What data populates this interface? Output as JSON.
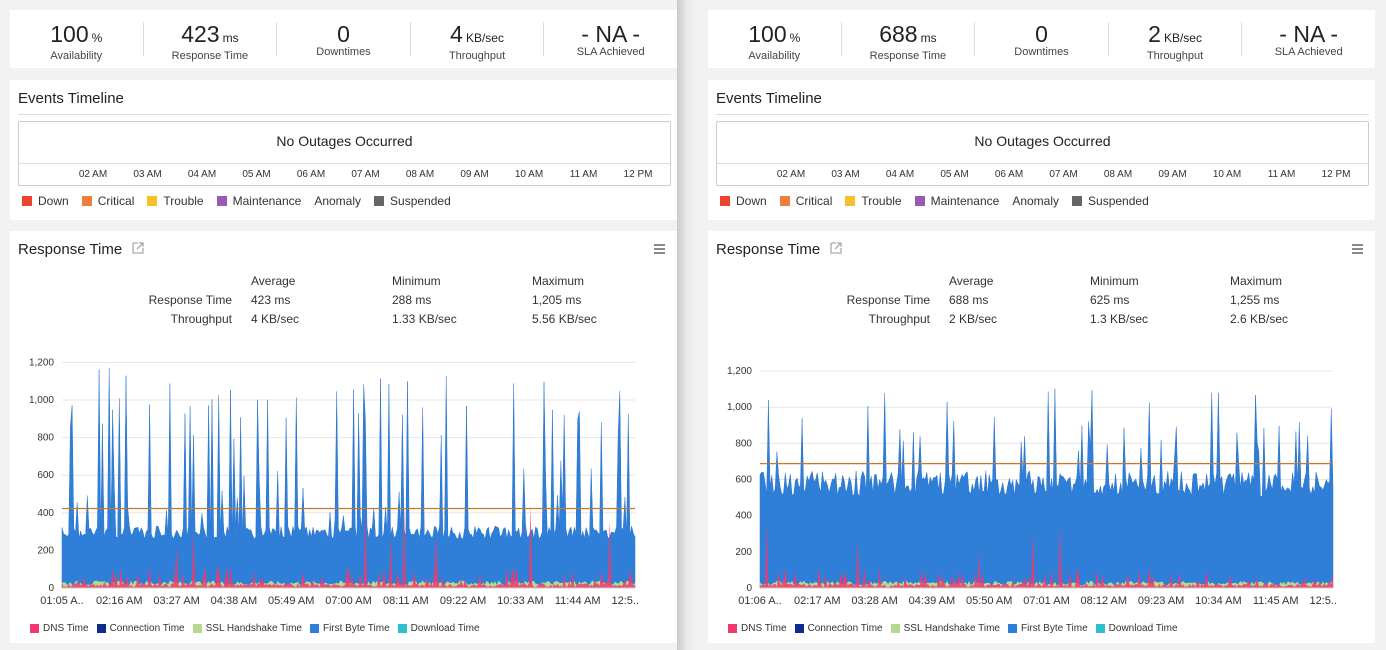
{
  "timeline_ticks": [
    "02 AM",
    "03 AM",
    "04 AM",
    "05 AM",
    "06 AM",
    "07 AM",
    "08 AM",
    "09 AM",
    "10 AM",
    "11 AM",
    "12 PM"
  ],
  "event_legend": [
    {
      "label": "Down",
      "color": "#e8452c"
    },
    {
      "label": "Critical",
      "color": "#f07d3c"
    },
    {
      "label": "Trouble",
      "color": "#f5c02a"
    },
    {
      "label": "Maintenance",
      "color": "#9b59b6"
    },
    {
      "label": "Anomaly",
      "color": ""
    },
    {
      "label": "Suspended",
      "color": "#666666"
    }
  ],
  "chart_legend": [
    {
      "label": "DNS Time",
      "color": "#f2386e"
    },
    {
      "label": "Connection Time",
      "color": "#0d2b8a"
    },
    {
      "label": "SSL Handshake Time",
      "color": "#b5d98e"
    },
    {
      "label": "First Byte Time",
      "color": "#2f7fd8"
    },
    {
      "label": "Download Time",
      "color": "#2ebfcf"
    }
  ],
  "labels": {
    "events_title": "Events Timeline",
    "no_outages": "No Outages Occurred",
    "response_title": "Response Time",
    "col_average": "Average",
    "col_minimum": "Minimum",
    "col_maximum": "Maximum",
    "row_response": "Response Time",
    "row_throughput": "Throughput"
  },
  "panels": [
    {
      "stats": [
        {
          "value": "100",
          "unit": "%",
          "label": "Availability"
        },
        {
          "value": "423",
          "unit": "ms",
          "label": "Response Time"
        },
        {
          "value": "0",
          "unit": "",
          "label": "Downtimes"
        },
        {
          "value": "4",
          "unit": "KB/sec",
          "label": "Throughput"
        },
        {
          "value": "- NA -",
          "unit": "",
          "label": "SLA Achieved"
        }
      ],
      "summary": {
        "response": {
          "average": "423 ms",
          "minimum": "288 ms",
          "maximum": "1,205 ms"
        },
        "throughput": {
          "average": "4 KB/sec",
          "minimum": "1.33 KB/sec",
          "maximum": "5.56 KB/sec"
        }
      },
      "chart_data": {
        "type": "area",
        "ylim": [
          0,
          1250
        ],
        "yticks": [
          "0",
          "200",
          "400",
          "600",
          "800",
          "1,000",
          "1,200"
        ],
        "xticks": [
          "01:05 A..",
          "02:16 AM",
          "03:27 AM",
          "04:38 AM",
          "05:49 AM",
          "07:00 AM",
          "08:11 AM",
          "09:22 AM",
          "10:33 AM",
          "11:44 AM",
          "12:5.."
        ],
        "average_line": 423,
        "base_level": 330,
        "series": [
          {
            "name": "DNS Time",
            "color": "#f2386e"
          },
          {
            "name": "Connection Time",
            "color": "#0d2b8a"
          },
          {
            "name": "SSL Handshake Time",
            "color": "#b5d98e"
          },
          {
            "name": "First Byte Time",
            "color": "#2f7fd8"
          },
          {
            "name": "Download Time",
            "color": "#2ebfcf"
          }
        ]
      }
    },
    {
      "stats": [
        {
          "value": "100",
          "unit": "%",
          "label": "Availability"
        },
        {
          "value": "688",
          "unit": "ms",
          "label": "Response Time"
        },
        {
          "value": "0",
          "unit": "",
          "label": "Downtimes"
        },
        {
          "value": "2",
          "unit": "KB/sec",
          "label": "Throughput"
        },
        {
          "value": "- NA -",
          "unit": "",
          "label": "SLA Achieved"
        }
      ],
      "summary": {
        "response": {
          "average": "688 ms",
          "minimum": "625 ms",
          "maximum": "1,255 ms"
        },
        "throughput": {
          "average": "2 KB/sec",
          "minimum": "1.3 KB/sec",
          "maximum": "2.6 KB/sec"
        }
      },
      "chart_data": {
        "type": "area",
        "ylim": [
          0,
          1300
        ],
        "yticks": [
          "0",
          "200",
          "400",
          "600",
          "800",
          "1,000",
          "1,200"
        ],
        "xticks": [
          "01:06 A..",
          "02:17 AM",
          "03:28 AM",
          "04:39 AM",
          "05:50 AM",
          "07:01 AM",
          "08:12 AM",
          "09:23 AM",
          "10:34 AM",
          "11:45 AM",
          "12:5.."
        ],
        "average_line": 688,
        "base_level": 650,
        "series": [
          {
            "name": "DNS Time",
            "color": "#f2386e"
          },
          {
            "name": "Connection Time",
            "color": "#0d2b8a"
          },
          {
            "name": "SSL Handshake Time",
            "color": "#b5d98e"
          },
          {
            "name": "First Byte Time",
            "color": "#2f7fd8"
          },
          {
            "name": "Download Time",
            "color": "#2ebfcf"
          }
        ]
      }
    }
  ]
}
